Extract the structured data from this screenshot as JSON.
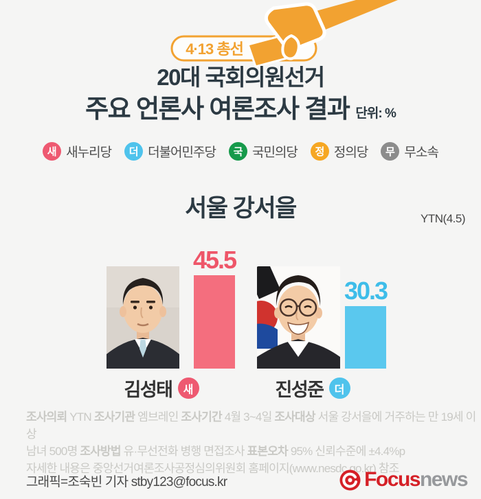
{
  "colors": {
    "accent": "#f2a231",
    "background": "#f5f5f4",
    "title_ink": "#2c3a43",
    "footnote_gray": "#c9c9c5",
    "logo_red": "#d52027",
    "logo_gray": "#97999c"
  },
  "header": {
    "badge_label": "4·13 총선",
    "title_line1": "20대 국회의원선거",
    "title_line2": "주요 언론사 여론조사 결과",
    "unit_label": "단위: %"
  },
  "legend": {
    "items": [
      {
        "short": "새",
        "label": "새누리당",
        "color": "#ee5971"
      },
      {
        "short": "더",
        "label": "더불어민주당",
        "color": "#4fc3ec"
      },
      {
        "short": "국",
        "label": "국민의당",
        "color": "#169a4b"
      },
      {
        "short": "정",
        "label": "정의당",
        "color": "#f6a723"
      },
      {
        "short": "무",
        "label": "무소속",
        "color": "#8c8c8c"
      }
    ]
  },
  "chart_data": {
    "type": "bar",
    "title": "서울 강서을",
    "source": "YTN(4.5)",
    "unit": "%",
    "ylim": [
      0,
      50
    ],
    "categories": [
      "김성태",
      "진성준"
    ],
    "values": [
      45.5,
      30.3
    ],
    "bars": [
      {
        "candidate": "김성태",
        "party_short": "새",
        "party": "새누리당",
        "value": 45.5,
        "badge_color": "#ee5971",
        "bar_color": "#f46e7e",
        "value_color": "#ee5669"
      },
      {
        "candidate": "진성준",
        "party_short": "더",
        "party": "더불어민주당",
        "value": 30.3,
        "badge_color": "#4fc3ec",
        "bar_color": "#5ac8ee",
        "value_color": "#3ebde9"
      }
    ],
    "legend_position": "top",
    "grid": false
  },
  "footnote": {
    "line1": [
      {
        "text": "조사의뢰",
        "bold": true
      },
      {
        "text": " YTN ",
        "bold": false
      },
      {
        "text": "조사기관",
        "bold": true
      },
      {
        "text": " 엠브레인 ",
        "bold": false
      },
      {
        "text": "조사기간",
        "bold": true
      },
      {
        "text": " 4월 3~4일 ",
        "bold": false
      },
      {
        "text": "조사대상",
        "bold": true
      },
      {
        "text": " 서울 강서을에 거주하는 만 19세 이상",
        "bold": false
      }
    ],
    "line2": [
      {
        "text": "남녀 500명  ",
        "bold": false
      },
      {
        "text": "조사방법",
        "bold": true
      },
      {
        "text": " 유·무선전화 병행 면접조사 ",
        "bold": false
      },
      {
        "text": "표본오차",
        "bold": true
      },
      {
        "text": " 95% 신뢰수준에 ±4.4%p",
        "bold": false
      }
    ],
    "line3": "자세한 내용은 중앙선거여론조사공정심의위원회 홈페이지(www.nesdc.go.kr) 참조"
  },
  "credit": "그래픽=조숙빈 기자 stby123@focus.kr",
  "logo": {
    "brand": "Focus",
    "brand2": "news"
  }
}
